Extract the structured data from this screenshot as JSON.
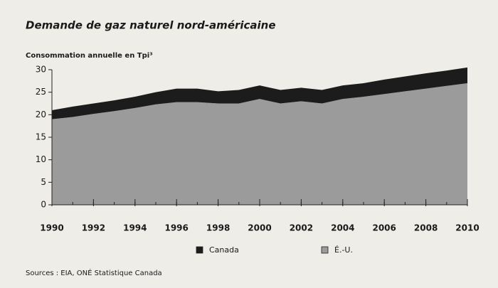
{
  "chart_data": {
    "type": "area",
    "stacked": true,
    "title": "Demande de gaz naturel nord-américaine",
    "y_label": "Consommation annuelle en Tpi³",
    "source": "Sources : EIA, ONÉ Statistique Canada",
    "x": [
      1990,
      1991,
      1992,
      1993,
      1994,
      1995,
      1996,
      1997,
      1998,
      1999,
      2000,
      2001,
      2002,
      2003,
      2004,
      2005,
      2006,
      2007,
      2008,
      2009,
      2010
    ],
    "xlim": [
      1990,
      2010
    ],
    "xticks": [
      1990,
      1992,
      1994,
      1996,
      1998,
      2000,
      2002,
      2004,
      2006,
      2008,
      2010
    ],
    "ylim": [
      0,
      30
    ],
    "yticks": [
      0,
      5,
      10,
      15,
      20,
      25,
      30
    ],
    "legend": "bottom",
    "series": [
      {
        "name": "É.-U.",
        "color": "#9b9b9b",
        "values": [
          19,
          19.5,
          20.2,
          20.8,
          21.5,
          22.3,
          22.8,
          22.8,
          22.5,
          22.5,
          23.5,
          22.5,
          23,
          22.5,
          23.5,
          24,
          24.6,
          25.2,
          25.8,
          26.4,
          27
        ]
      },
      {
        "name": "Canada",
        "color": "#1c1c1c",
        "values": [
          2,
          2.3,
          2.3,
          2.4,
          2.5,
          2.7,
          3,
          3,
          2.7,
          3,
          3,
          3,
          3,
          3,
          3,
          3,
          3.2,
          3.3,
          3.4,
          3.4,
          3.5
        ]
      }
    ]
  }
}
